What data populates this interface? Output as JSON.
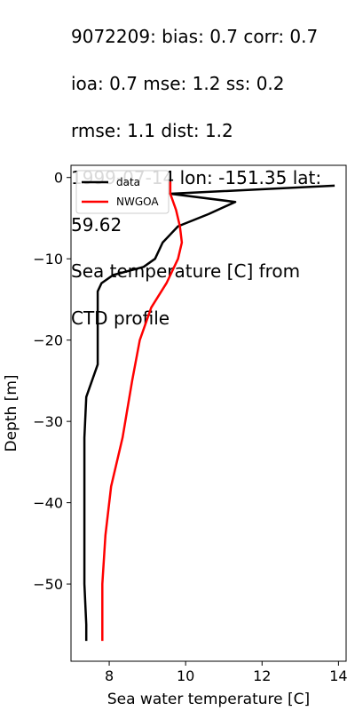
{
  "title_lines": [
    "9072209: bias: 0.7  corr: 0.7",
    " ioa: 0.7  mse: 1.2  ss: 0.2",
    "rmse: 1.1  dist: 1.2",
    "1999-07-14 lon: -151.35 lat:",
    "59.62",
    "Sea temperature [C] from",
    "CTD profile"
  ],
  "chart_data": {
    "type": "line",
    "xlabel": "Sea water temperature [C]",
    "ylabel": "Depth [m]",
    "xlim": [
      7.0,
      14.2
    ],
    "ylim": [
      -59.5,
      1.5
    ],
    "xticks": [
      8,
      10,
      12,
      14
    ],
    "yticks": [
      0,
      -10,
      -20,
      -30,
      -40,
      -50
    ],
    "ytick_labels": [
      "0",
      "−10",
      "−20",
      "−30",
      "−40",
      "−50"
    ],
    "grid": false,
    "legend_position": "top-left",
    "series": [
      {
        "name": "data",
        "color": "#000000",
        "points": [
          [
            13.9,
            -1
          ],
          [
            9.6,
            -2
          ],
          [
            11.3,
            -3
          ],
          [
            10.6,
            -4.5
          ],
          [
            9.8,
            -6
          ],
          [
            9.6,
            -7
          ],
          [
            9.4,
            -8
          ],
          [
            9.2,
            -10
          ],
          [
            8.9,
            -11
          ],
          [
            8.1,
            -12
          ],
          [
            7.8,
            -13
          ],
          [
            7.7,
            -14
          ],
          [
            7.7,
            -16
          ],
          [
            7.7,
            -19
          ],
          [
            7.7,
            -23
          ],
          [
            7.4,
            -27
          ],
          [
            7.35,
            -32
          ],
          [
            7.35,
            -40
          ],
          [
            7.35,
            -50
          ],
          [
            7.4,
            -55
          ],
          [
            7.4,
            -57
          ]
        ]
      },
      {
        "name": "NWGOA",
        "color": "#ff0000",
        "points": [
          [
            9.6,
            -0.5
          ],
          [
            9.6,
            -2
          ],
          [
            9.75,
            -4
          ],
          [
            9.85,
            -6
          ],
          [
            9.9,
            -8
          ],
          [
            9.8,
            -10
          ],
          [
            9.5,
            -13
          ],
          [
            9.1,
            -16
          ],
          [
            8.8,
            -20
          ],
          [
            8.6,
            -25
          ],
          [
            8.35,
            -32
          ],
          [
            8.05,
            -38
          ],
          [
            7.9,
            -44
          ],
          [
            7.82,
            -50
          ],
          [
            7.82,
            -57
          ]
        ]
      }
    ]
  }
}
